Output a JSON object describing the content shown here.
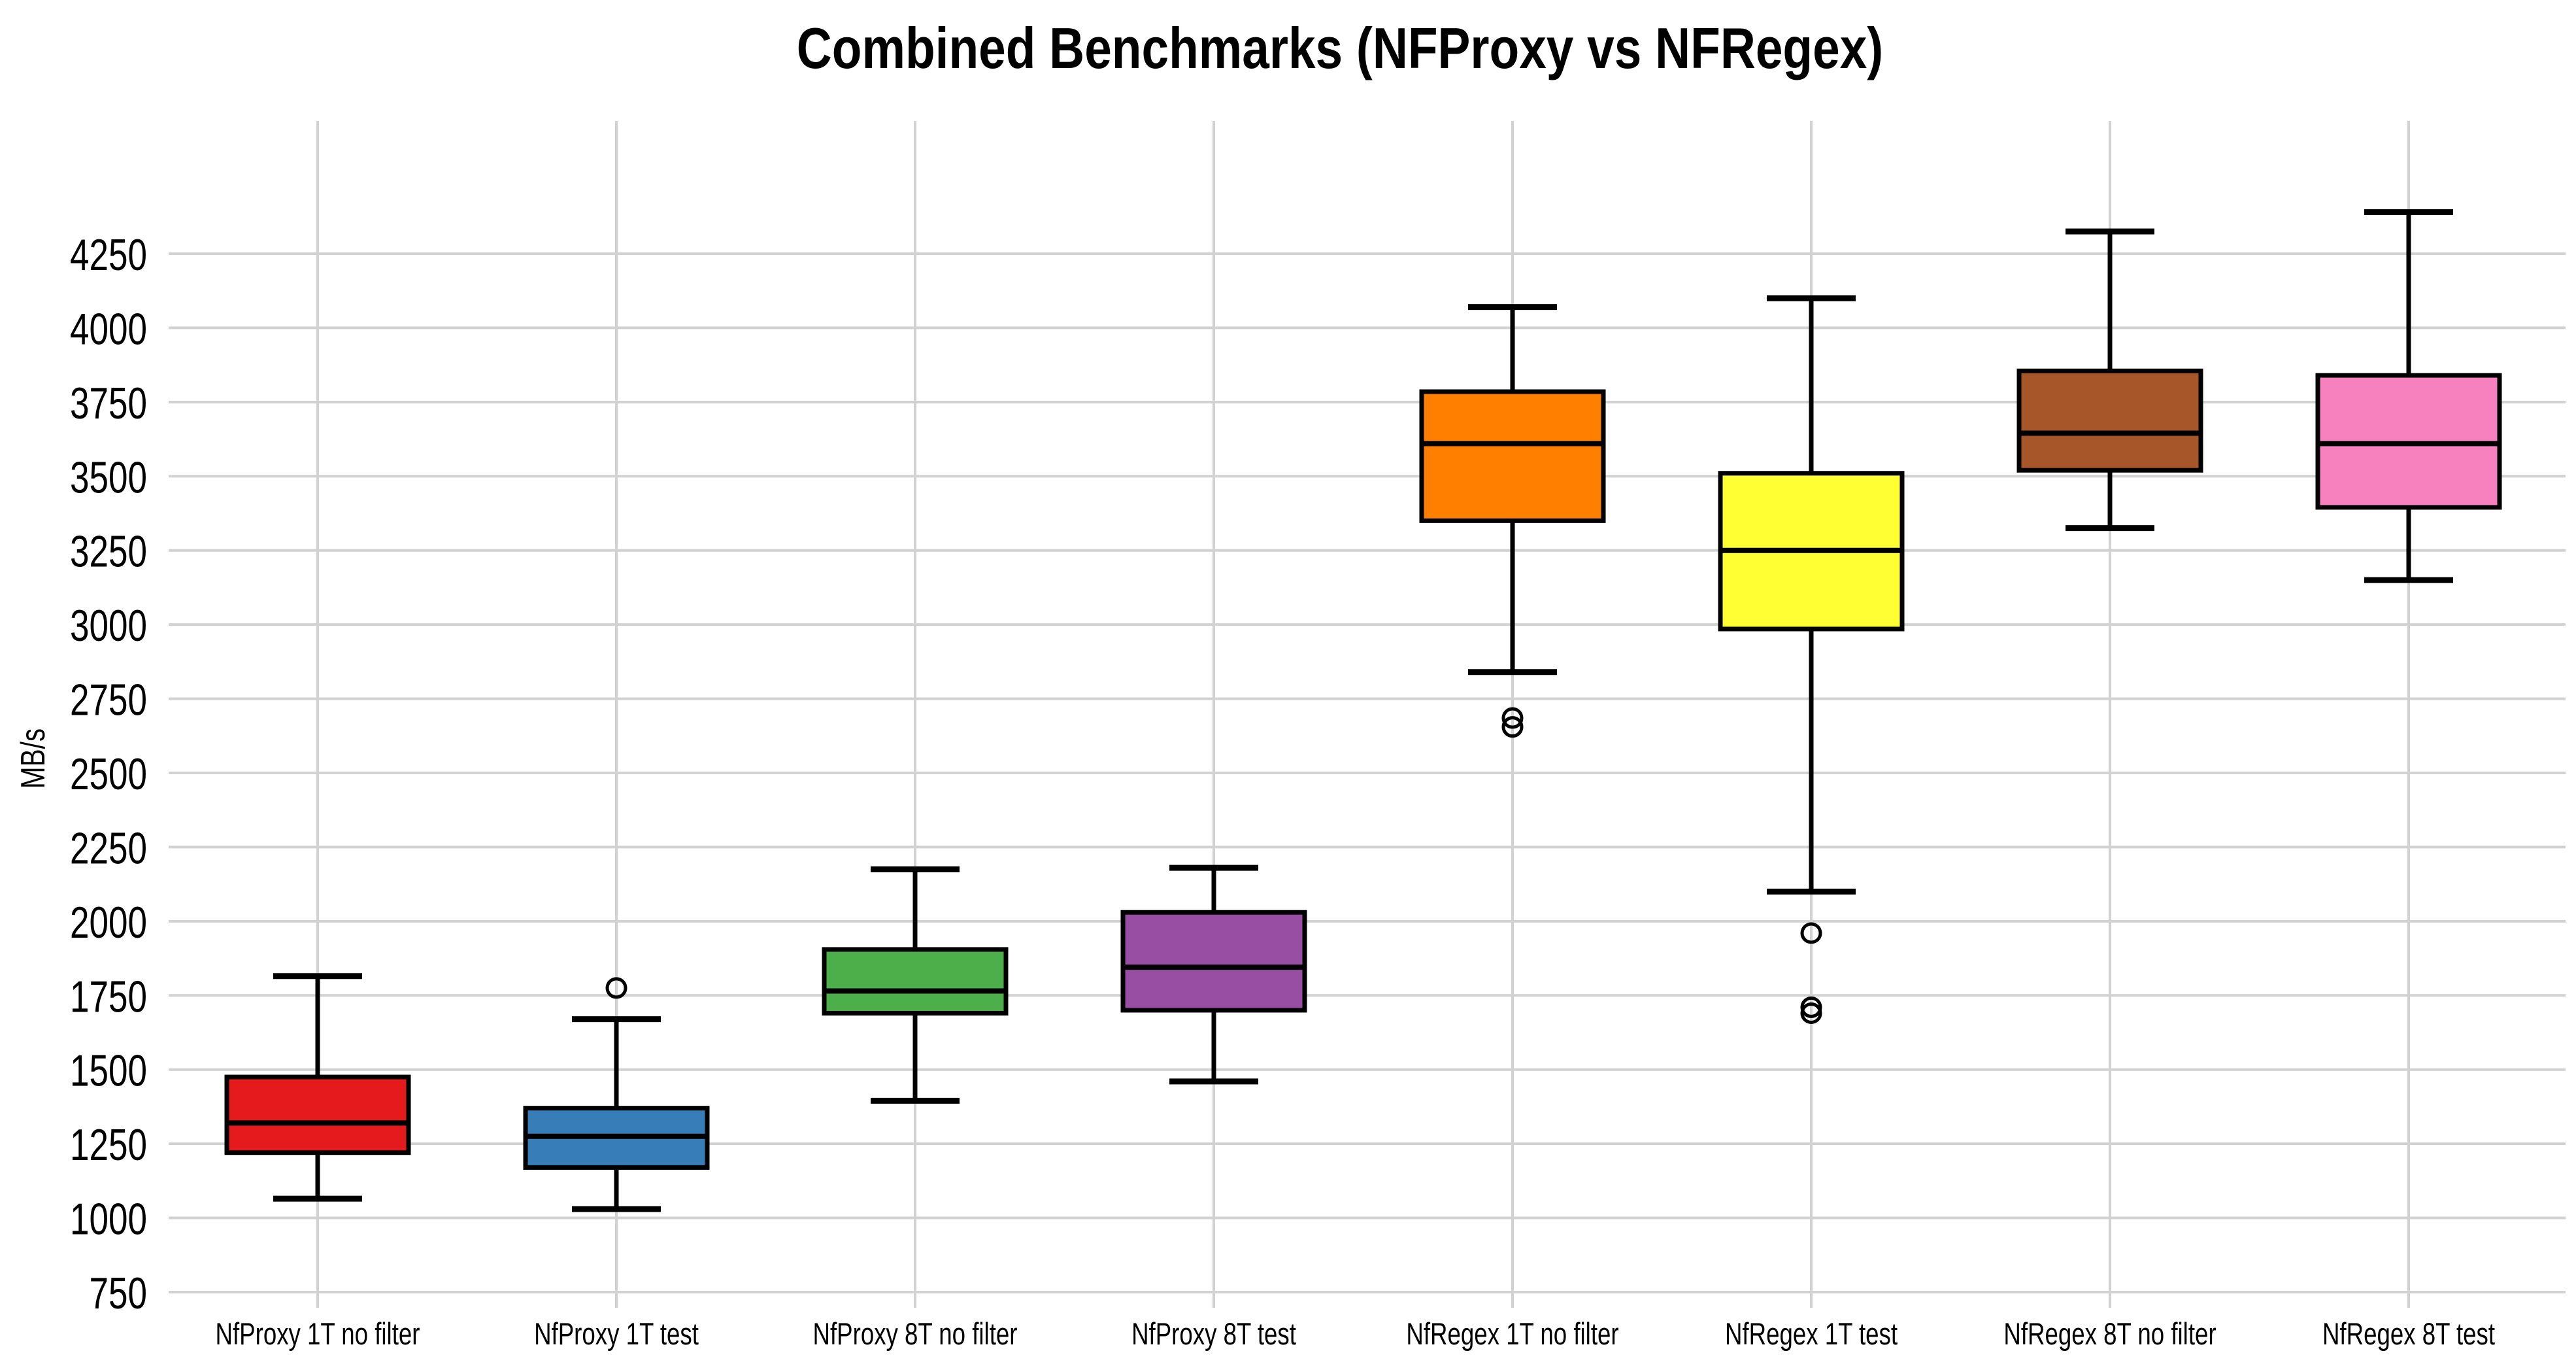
{
  "page": {
    "background": "#ffffff"
  },
  "chart_data": {
    "type": "box",
    "title": "Combined Benchmarks (NFProxy vs NFRegex)",
    "xlabel": "",
    "ylabel": "MB/s",
    "grid": true,
    "legend": false,
    "ylim": [
      730,
      4700
    ],
    "yticks": [
      750,
      1000,
      1250,
      1500,
      1750,
      2000,
      2250,
      2500,
      2750,
      3000,
      3250,
      3500,
      3750,
      4000,
      4250
    ],
    "categories": [
      "NfProxy 1T no filter",
      "NfProxy 1T test",
      "NfProxy 8T no filter",
      "NfProxy 8T test",
      "NfRegex 1T no filter",
      "NfRegex 1T test",
      "NfRegex 8T no filter",
      "NfRegex 8T test"
    ],
    "series": [
      {
        "name": "NfProxy 1T no filter",
        "color": "#e41a1c",
        "whislo": 1065,
        "q1": 1220,
        "med": 1320,
        "q3": 1475,
        "whishi": 1815,
        "outliers": []
      },
      {
        "name": "NfProxy 1T test",
        "color": "#377eb8",
        "whislo": 1030,
        "q1": 1170,
        "med": 1275,
        "q3": 1370,
        "whishi": 1670,
        "outliers": [
          1775
        ]
      },
      {
        "name": "NfProxy 8T no filter",
        "color": "#4daf4a",
        "whislo": 1395,
        "q1": 1690,
        "med": 1765,
        "q3": 1905,
        "whishi": 2175,
        "outliers": []
      },
      {
        "name": "NfProxy 8T test",
        "color": "#984ea3",
        "whislo": 1460,
        "q1": 1700,
        "med": 1845,
        "q3": 2030,
        "whishi": 2180,
        "outliers": []
      },
      {
        "name": "NfRegex 1T no filter",
        "color": "#ff7f00",
        "whislo": 2840,
        "q1": 3350,
        "med": 3610,
        "q3": 3785,
        "whishi": 4070,
        "outliers": [
          2685,
          2655
        ]
      },
      {
        "name": "NfRegex 1T test",
        "color": "#ffff33",
        "whislo": 2100,
        "q1": 2985,
        "med": 3250,
        "q3": 3510,
        "whishi": 4100,
        "outliers": [
          1960,
          1710,
          1690
        ]
      },
      {
        "name": "NfRegex 8T no filter",
        "color": "#a65628",
        "whislo": 3325,
        "q1": 3520,
        "med": 3645,
        "q3": 3855,
        "whishi": 4325,
        "outliers": []
      },
      {
        "name": "NfRegex 8T test",
        "color": "#f781bf",
        "whislo": 3150,
        "q1": 3395,
        "med": 3610,
        "q3": 3840,
        "whishi": 4390,
        "outliers": []
      }
    ],
    "style": {
      "gridline_color": "#d2d2d2",
      "box_edge_color": "#000000",
      "median_color": "#000000",
      "whisker_color": "#000000",
      "outlier_ring_color": "#000000",
      "background": "#ffffff"
    }
  }
}
